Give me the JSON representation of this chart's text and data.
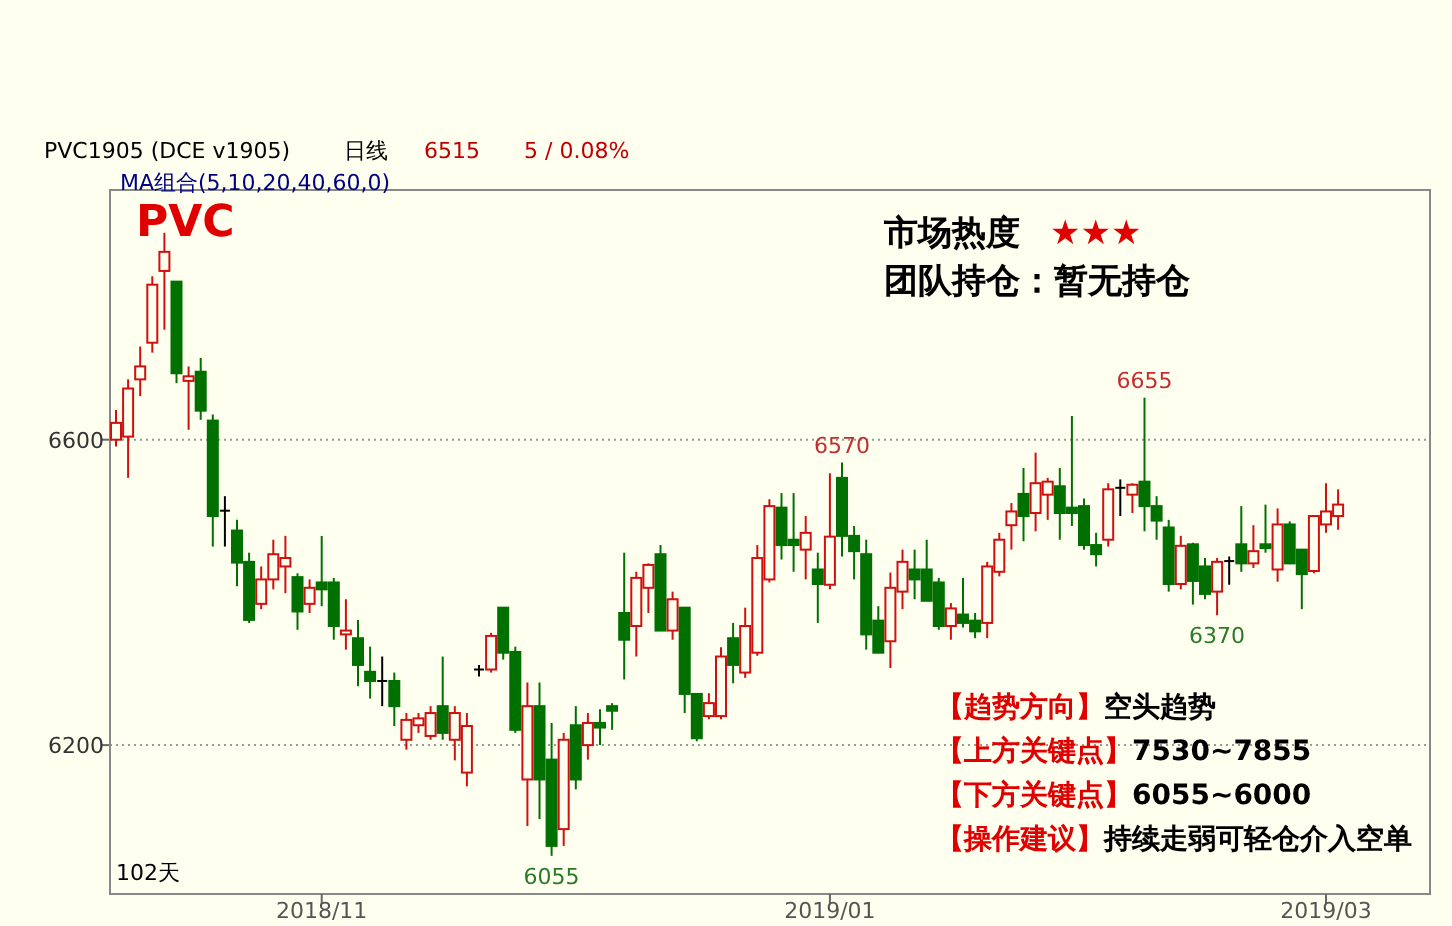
{
  "chart_data": {
    "type": "candlestick",
    "title": "PVC",
    "categories": [
      null,
      null,
      null,
      null,
      null,
      null,
      null,
      null,
      null,
      null,
      null,
      null,
      null,
      null,
      null,
      null,
      null,
      "2018/11",
      null,
      null,
      null,
      null,
      null,
      null,
      null,
      null,
      null,
      null,
      null,
      null,
      null,
      null,
      null,
      null,
      null,
      null,
      null,
      null,
      null,
      null,
      null,
      null,
      null,
      null,
      null,
      null,
      null,
      null,
      null,
      null,
      null,
      null,
      null,
      null,
      null,
      null,
      null,
      null,
      null,
      "2019/01",
      null,
      null,
      null,
      null,
      null,
      null,
      null,
      null,
      null,
      null,
      null,
      null,
      null,
      null,
      null,
      null,
      null,
      null,
      null,
      null,
      null,
      null,
      null,
      null,
      null,
      null,
      null,
      null,
      null,
      null,
      null,
      null,
      null,
      null,
      null,
      null,
      null,
      null,
      null,
      null,
      "2019/03",
      null
    ],
    "ohlc": [
      [
        6600,
        6639,
        6591,
        6622
      ],
      [
        6604,
        6679,
        6550,
        6667
      ],
      [
        6679,
        6722,
        6657,
        6696
      ],
      [
        6727,
        6814,
        6714,
        6803
      ],
      [
        6821,
        6871,
        6744,
        6846
      ],
      [
        6807,
        6807,
        6674,
        6687
      ],
      [
        6677,
        6696,
        6613,
        6683
      ],
      [
        6689,
        6707,
        6626,
        6638
      ],
      [
        6625,
        6633,
        6460,
        6500
      ],
      [
        6507,
        6526,
        6460,
        6507
      ],
      [
        6481,
        6495,
        6408,
        6439
      ],
      [
        6440,
        6452,
        6360,
        6364
      ],
      [
        6385,
        6434,
        6378,
        6417
      ],
      [
        6417,
        6469,
        6404,
        6450
      ],
      [
        6434,
        6474,
        6399,
        6445
      ],
      [
        6420,
        6425,
        6351,
        6375
      ],
      [
        6385,
        6417,
        6373,
        6406
      ],
      [
        6413,
        6474,
        6382,
        6404
      ],
      [
        6413,
        6419,
        6338,
        6356
      ],
      [
        6345,
        6391,
        6325,
        6350
      ],
      [
        6340,
        6364,
        6277,
        6305
      ],
      [
        6296,
        6329,
        6261,
        6284
      ],
      [
        6284,
        6316,
        6251,
        6284
      ],
      [
        6284,
        6295,
        6225,
        6251
      ],
      [
        6207,
        6242,
        6194,
        6233
      ],
      [
        6226,
        6242,
        6216,
        6235
      ],
      [
        6212,
        6251,
        6207,
        6242
      ],
      [
        6251,
        6316,
        6207,
        6216
      ],
      [
        6207,
        6251,
        6180,
        6242
      ],
      [
        6164,
        6242,
        6146,
        6225
      ],
      [
        6299,
        6305,
        6290,
        6299
      ],
      [
        6299,
        6347,
        6295,
        6343
      ],
      [
        6380,
        6380,
        6312,
        6321
      ],
      [
        6322,
        6329,
        6216,
        6220
      ],
      [
        6155,
        6282,
        6094,
        6251
      ],
      [
        6251,
        6282,
        6103,
        6155
      ],
      [
        6181,
        6229,
        6055,
        6068
      ],
      [
        6090,
        6216,
        6068,
        6207
      ],
      [
        6226,
        6251,
        6142,
        6155
      ],
      [
        6200,
        6242,
        6181,
        6229
      ],
      [
        6229,
        6247,
        6200,
        6223
      ],
      [
        6251,
        6255,
        6220,
        6245
      ],
      [
        6373,
        6452,
        6286,
        6338
      ],
      [
        6356,
        6427,
        6316,
        6419
      ],
      [
        6406,
        6438,
        6373,
        6436
      ],
      [
        6450,
        6462,
        6350,
        6350
      ],
      [
        6350,
        6401,
        6338,
        6391
      ],
      [
        6380,
        6380,
        6242,
        6267
      ],
      [
        6267,
        6267,
        6205,
        6209
      ],
      [
        6238,
        6268,
        6234,
        6255
      ],
      [
        6238,
        6328,
        6234,
        6316
      ],
      [
        6340,
        6360,
        6281,
        6305
      ],
      [
        6295,
        6380,
        6288,
        6356
      ],
      [
        6321,
        6462,
        6317,
        6445
      ],
      [
        6417,
        6522,
        6413,
        6513
      ],
      [
        6511,
        6530,
        6443,
        6462
      ],
      [
        6469,
        6530,
        6427,
        6462
      ],
      [
        6456,
        6500,
        6417,
        6478
      ],
      [
        6430,
        6452,
        6360,
        6411
      ],
      [
        6410,
        6556,
        6404,
        6473
      ],
      [
        6550,
        6570,
        6447,
        6474
      ],
      [
        6474,
        6487,
        6417,
        6454
      ],
      [
        6450,
        6469,
        6325,
        6345
      ],
      [
        6363,
        6382,
        6321,
        6321
      ],
      [
        6336,
        6426,
        6301,
        6406
      ],
      [
        6401,
        6456,
        6378,
        6440
      ],
      [
        6430,
        6456,
        6391,
        6417
      ],
      [
        6430,
        6469,
        6389,
        6389
      ],
      [
        6413,
        6419,
        6351,
        6356
      ],
      [
        6356,
        6386,
        6338,
        6379
      ],
      [
        6371,
        6419,
        6354,
        6360
      ],
      [
        6363,
        6373,
        6340,
        6349
      ],
      [
        6360,
        6440,
        6340,
        6434
      ],
      [
        6427,
        6478,
        6421,
        6469
      ],
      [
        6488,
        6517,
        6456,
        6506
      ],
      [
        6529,
        6563,
        6467,
        6500
      ],
      [
        6504,
        6583,
        6480,
        6543
      ],
      [
        6528,
        6550,
        6495,
        6545
      ],
      [
        6539,
        6563,
        6469,
        6504
      ],
      [
        6511,
        6631,
        6487,
        6504
      ],
      [
        6513,
        6523,
        6456,
        6462
      ],
      [
        6462,
        6478,
        6434,
        6450
      ],
      [
        6469,
        6543,
        6460,
        6535
      ],
      [
        6537,
        6548,
        6500,
        6537
      ],
      [
        6528,
        6543,
        6504,
        6541
      ],
      [
        6545,
        6655,
        6480,
        6513
      ],
      [
        6513,
        6526,
        6469,
        6494
      ],
      [
        6485,
        6495,
        6401,
        6411
      ],
      [
        6411,
        6474,
        6404,
        6461
      ],
      [
        6463,
        6465,
        6384,
        6415
      ],
      [
        6434,
        6445,
        6391,
        6398
      ],
      [
        6401,
        6445,
        6370,
        6440
      ],
      [
        6441,
        6447,
        6410,
        6441
      ],
      [
        6463,
        6513,
        6427,
        6438
      ],
      [
        6438,
        6488,
        6432,
        6454
      ],
      [
        6463,
        6515,
        6452,
        6458
      ],
      [
        6430,
        6510,
        6414,
        6489
      ],
      [
        6489,
        6493,
        6437,
        6438
      ],
      [
        6456,
        6456,
        6378,
        6424
      ],
      [
        6428,
        6500,
        6425,
        6500
      ],
      [
        6489,
        6543,
        6478,
        6506
      ],
      [
        6500,
        6535,
        6482,
        6515
      ]
    ],
    "ylim": [
      6005,
      6927
    ],
    "yticks": [
      6600,
      6200
    ],
    "grid": "y",
    "annotations": [
      "PVC1905 (DCE v1905)",
      "日线",
      "6515",
      "5 / 0.08%",
      "MA组合(5,10,20,40,60,0)",
      "市场热度",
      "★★★",
      "团队持仓：暂无持仓",
      "【趋势方向】空头趋势",
      "【上方关键点】7530~7855",
      "【下方关键点】6055~6000",
      "【操作建议】持续走弱可轻仓介入空单",
      "102天",
      {
        "text": "6655",
        "y": 6655
      },
      {
        "text": "6570",
        "y": 6570
      },
      {
        "text": "6370",
        "y": 6370
      },
      {
        "text": "6055",
        "y": 6055
      }
    ]
  }
}
